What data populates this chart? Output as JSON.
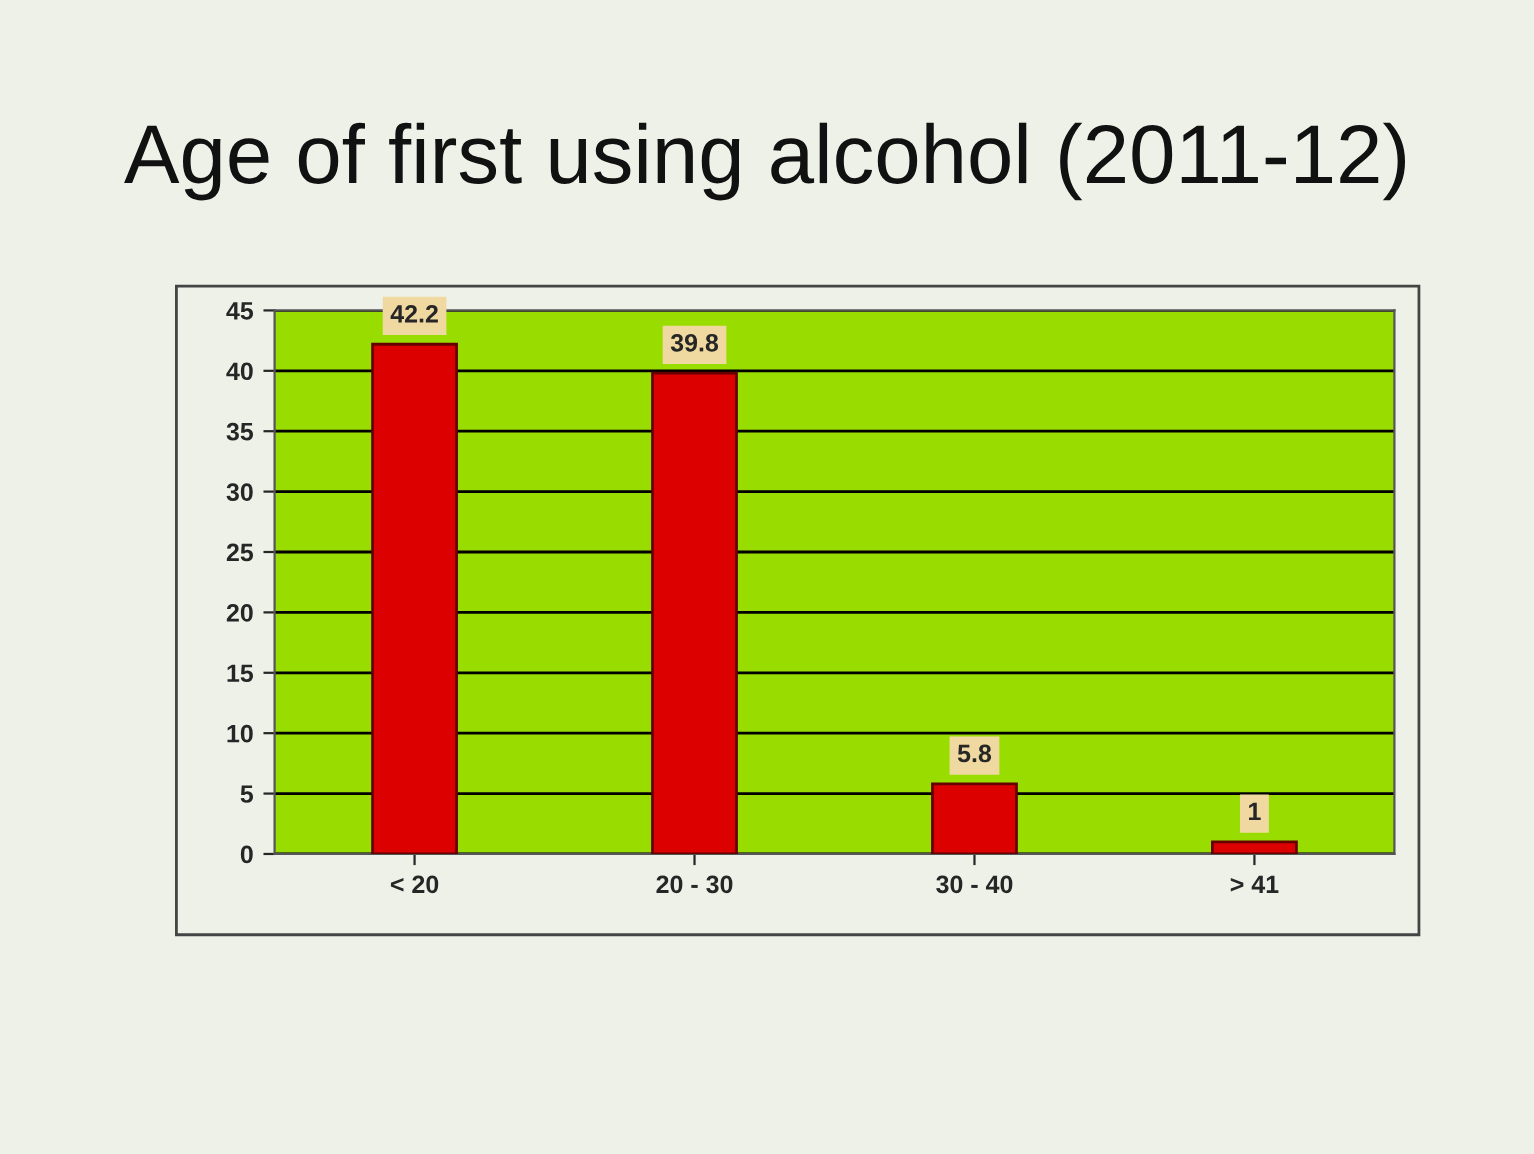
{
  "chart_data": {
    "type": "bar",
    "title": "Age of first using alcohol (2011-12)",
    "categories": [
      "< 20",
      "20 - 30",
      "30 - 40",
      "> 41"
    ],
    "values": [
      42.2,
      39.8,
      5.8,
      1
    ],
    "color": "#dd0000",
    "ylim": [
      0,
      45
    ],
    "yticks": [
      0,
      5,
      10,
      15,
      20,
      25,
      30,
      35,
      40,
      45
    ],
    "grid": "y",
    "data_labels": true
  }
}
